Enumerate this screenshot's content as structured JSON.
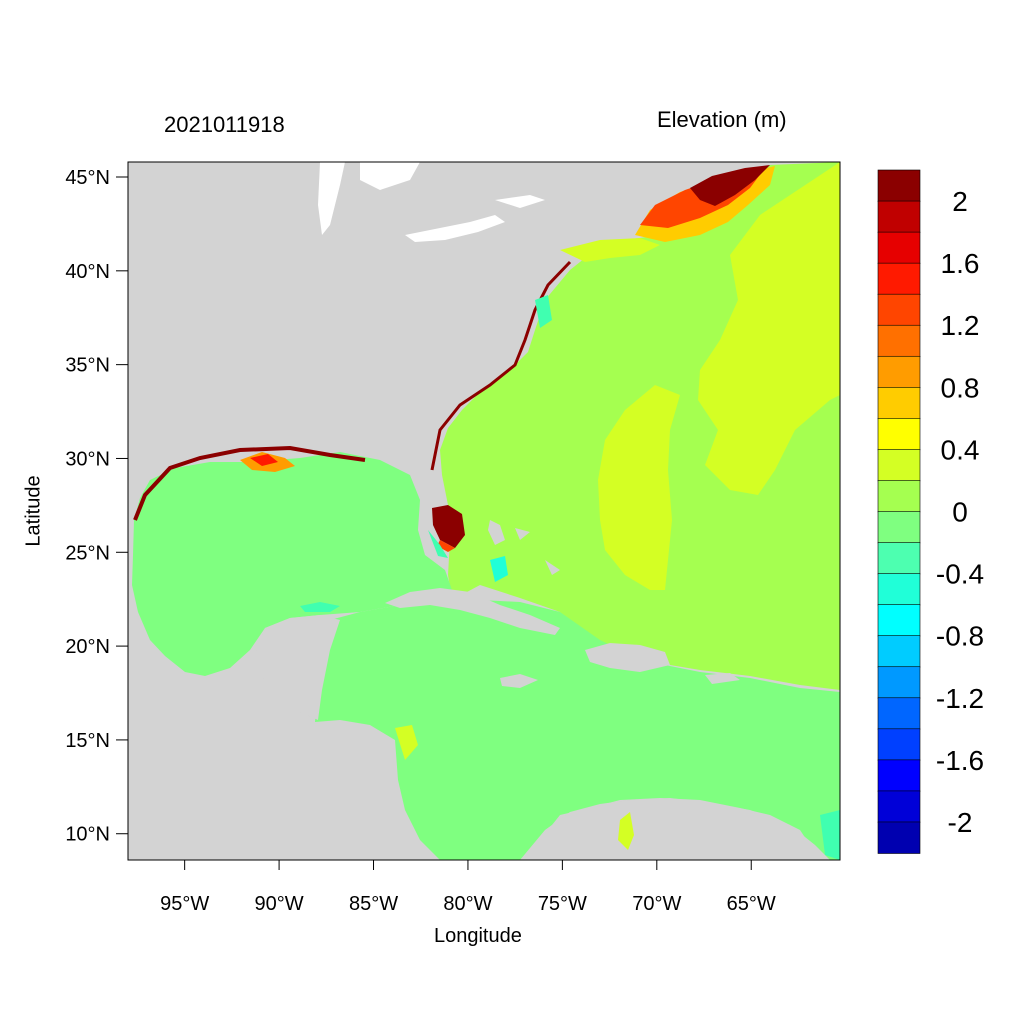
{
  "map": {
    "time_label": "2021011918",
    "units_label": "Elevation (m)",
    "xlabel": "Longitude",
    "ylabel": "Latitude",
    "lon_range": [
      -98,
      -60.3
    ],
    "lat_range": [
      8.6,
      45.8
    ],
    "lon_ticks": [
      {
        "value": -95,
        "label": "95°W"
      },
      {
        "value": -90,
        "label": "90°W"
      },
      {
        "value": -85,
        "label": "85°W"
      },
      {
        "value": -80,
        "label": "80°W"
      },
      {
        "value": -75,
        "label": "75°W"
      },
      {
        "value": -70,
        "label": "70°W"
      },
      {
        "value": -65,
        "label": "65°W"
      }
    ],
    "lat_ticks": [
      {
        "value": 10,
        "label": "10°N"
      },
      {
        "value": 15,
        "label": "15°N"
      },
      {
        "value": 20,
        "label": "20°N"
      },
      {
        "value": 25,
        "label": "25°N"
      },
      {
        "value": 30,
        "label": "30°N"
      },
      {
        "value": 35,
        "label": "35°N"
      },
      {
        "value": 40,
        "label": "40°N"
      },
      {
        "value": 45,
        "label": "45°N"
      }
    ],
    "colors": {
      "land": "#d3d3d3",
      "gulf_caribbean": "#7fff80",
      "atlantic": "#a5ff50",
      "atlantic_band": "#d4ff24",
      "surge_high": "#8b0000",
      "surge_mid": "#ff4500",
      "surge_low": "#ffa500",
      "negative_low": "#40ffb0"
    },
    "colorbar": {
      "levels": [
        "2",
        "1.6",
        "1.2",
        "0.8",
        "0.4",
        "0",
        "-0.4",
        "-0.8",
        "-1.2",
        "-1.6",
        "-2"
      ],
      "colors": [
        "#8b0000",
        "#c00000",
        "#e60000",
        "#ff1a00",
        "#ff4500",
        "#ff7000",
        "#ff9c00",
        "#ffcc00",
        "#ffff00",
        "#d4ff24",
        "#a5ff50",
        "#7fff80",
        "#4dffb0",
        "#20ffd8",
        "#00ffff",
        "#00ccff",
        "#0099ff",
        "#0066ff",
        "#0040ff",
        "#0000ff",
        "#0000d8",
        "#0000b0"
      ]
    }
  }
}
